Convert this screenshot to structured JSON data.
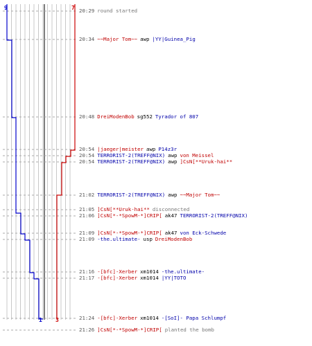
{
  "start_counts": {
    "blue": "9",
    "red": "7"
  },
  "end_counts": {
    "blue": "1",
    "red": "3"
  },
  "colors": {
    "blue_team": "#0000cc",
    "red_team": "#cc0000",
    "grid": "#c8c8c8",
    "dash": "#aaaaaa",
    "center": "#555555"
  },
  "events": [
    {
      "time": "20:29",
      "parts": [
        {
          "text": "round started",
          "c": "g"
        }
      ]
    },
    {
      "time": "20:34",
      "parts": [
        {
          "text": "~~Major Tom~~",
          "c": "r"
        },
        {
          "text": "awp",
          "c": "k"
        },
        {
          "text": "|YY|Guinea_Pig",
          "c": "b"
        }
      ]
    },
    {
      "time": "20:48",
      "parts": [
        {
          "text": "DreiModenBob",
          "c": "r"
        },
        {
          "text": "sg552",
          "c": "k"
        },
        {
          "text": "Tyrador of 807",
          "c": "b"
        }
      ]
    },
    {
      "time": "20:54",
      "parts": [
        {
          "text": "|jaeger|meister",
          "c": "r"
        },
        {
          "text": "awp",
          "c": "k"
        },
        {
          "text": "P14z3r",
          "c": "b"
        }
      ]
    },
    {
      "time": "20:54",
      "parts": [
        {
          "text": "TERRORIST-2(TREFF@NIX)",
          "c": "b"
        },
        {
          "text": "awp",
          "c": "k"
        },
        {
          "text": "von Meissel",
          "c": "r"
        }
      ]
    },
    {
      "time": "20:54",
      "parts": [
        {
          "text": "TERRORIST-2(TREFF@NIX)",
          "c": "b"
        },
        {
          "text": "awp",
          "c": "k"
        },
        {
          "text": "]CsN[**Uruk-hai**",
          "c": "r"
        }
      ]
    },
    {
      "time": "21:02",
      "parts": [
        {
          "text": "TERRORIST-2(TREFF@NIX)",
          "c": "b"
        },
        {
          "text": "awp",
          "c": "k"
        },
        {
          "text": "~~Major Tom~~",
          "c": "r"
        }
      ]
    },
    {
      "time": "21:05",
      "parts": [
        {
          "text": "]CsN[**Uruk-hai**",
          "c": "r"
        },
        {
          "text": "disconnected",
          "c": "g"
        }
      ]
    },
    {
      "time": "21:06",
      "parts": [
        {
          "text": "]CsN[*-*SpowM-*]CRIP[",
          "c": "r"
        },
        {
          "text": "ak47",
          "c": "k"
        },
        {
          "text": "TERRORIST-2(TREFF@NIX)",
          "c": "b"
        }
      ]
    },
    {
      "time": "21:09",
      "parts": [
        {
          "text": "]CsN[*-*SpowM-*]CRIP[",
          "c": "r"
        },
        {
          "text": "ak47",
          "c": "k"
        },
        {
          "text": "von Eck-Schwede",
          "c": "b"
        }
      ]
    },
    {
      "time": "21:09",
      "parts": [
        {
          "text": "-the.ultimate-",
          "c": "b"
        },
        {
          "text": "usp",
          "c": "k"
        },
        {
          "text": "DreiModenBob",
          "c": "r"
        }
      ]
    },
    {
      "time": "21:16",
      "parts": [
        {
          "text": "-[bfc]-Xerber",
          "c": "r"
        },
        {
          "text": "xm1014",
          "c": "k"
        },
        {
          "text": "-the.ultimate-",
          "c": "b"
        }
      ]
    },
    {
      "time": "21:17",
      "parts": [
        {
          "text": "-[bfc]-Xerber",
          "c": "r"
        },
        {
          "text": "xm1014",
          "c": "k"
        },
        {
          "text": "|YY|TOTO",
          "c": "b"
        }
      ]
    },
    {
      "time": "21:24",
      "parts": [
        {
          "text": "-[bfc]-Xerber",
          "c": "r"
        },
        {
          "text": "xm1014",
          "c": "k"
        },
        {
          "text": "-[SoI]- Papa Schlumpf",
          "c": "b"
        }
      ]
    },
    {
      "time": "21:26",
      "parts": [
        {
          "text": "]CsN[*-*SpowM-*]CRIP[",
          "c": "r"
        },
        {
          "text": "planted the bomb",
          "c": "g"
        }
      ]
    }
  ]
}
